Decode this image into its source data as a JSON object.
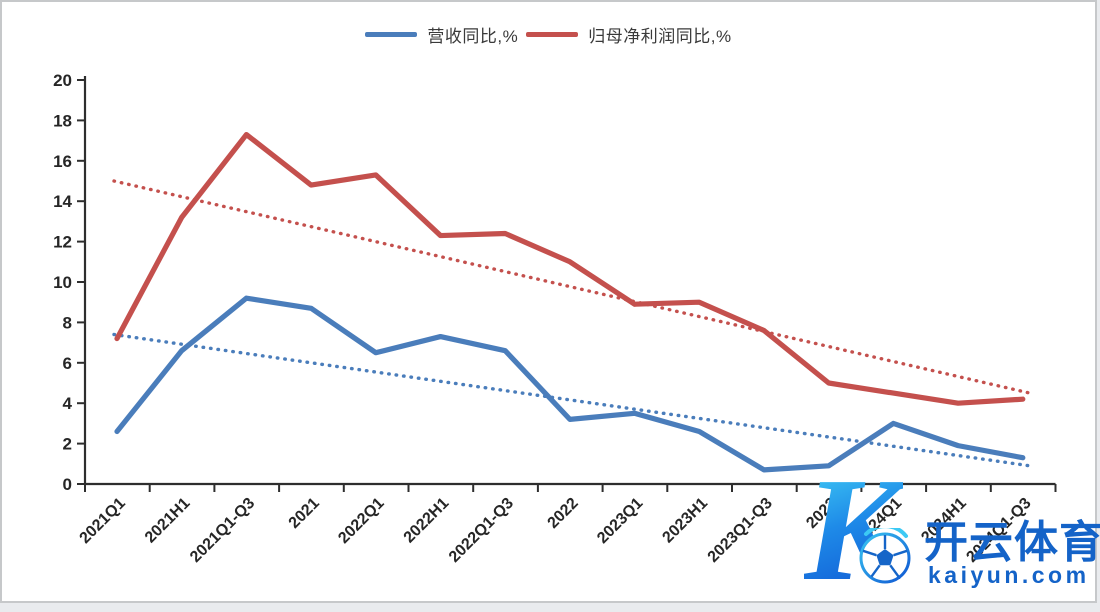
{
  "chart_data": {
    "type": "line",
    "title": "",
    "xlabel": "",
    "ylabel": "",
    "categories": [
      "2021Q1",
      "2021H1",
      "2021Q1-Q3",
      "2021",
      "2022Q1",
      "2022H1",
      "2022Q1-Q3",
      "2022",
      "2023Q1",
      "2023H1",
      "2023Q1-Q3",
      "2023",
      "2024Q1",
      "2024H1",
      "2024Q1-Q3"
    ],
    "series": [
      {
        "name": "营收同比,%",
        "color": "#4A7DBB",
        "values": [
          2.6,
          6.6,
          9.2,
          8.7,
          6.5,
          7.3,
          6.6,
          3.2,
          3.5,
          2.6,
          0.7,
          0.9,
          3.0,
          1.9,
          1.3
        ]
      },
      {
        "name": "归母净利润同比,%",
        "color": "#C4504D",
        "values": [
          7.2,
          13.2,
          17.3,
          14.8,
          15.3,
          12.3,
          12.4,
          11.0,
          8.9,
          9.0,
          7.6,
          5.0,
          4.5,
          4.0,
          4.2
        ]
      }
    ],
    "trendlines": [
      {
        "series": "营收同比,%",
        "style": "dotted",
        "color": "#4A7DBB",
        "start_value": 7.4,
        "end_value": 0.9
      },
      {
        "series": "归母净利润同比,%",
        "style": "dotted",
        "color": "#C4504D",
        "start_value": 15.0,
        "end_value": 4.5
      }
    ],
    "ylim": [
      0,
      20
    ],
    "ytick_step": 2,
    "grid": false,
    "legend_position": "top",
    "axis_color": "#2e2e2e",
    "tick_label_color": "#262626"
  },
  "watermark": {
    "logo": "kaiyun-k-soccer-ball-logo",
    "logo_letter": "K",
    "brand_cn": "开云体育",
    "brand_url": "kaiyun.com",
    "brand_color": "#1463c8"
  }
}
